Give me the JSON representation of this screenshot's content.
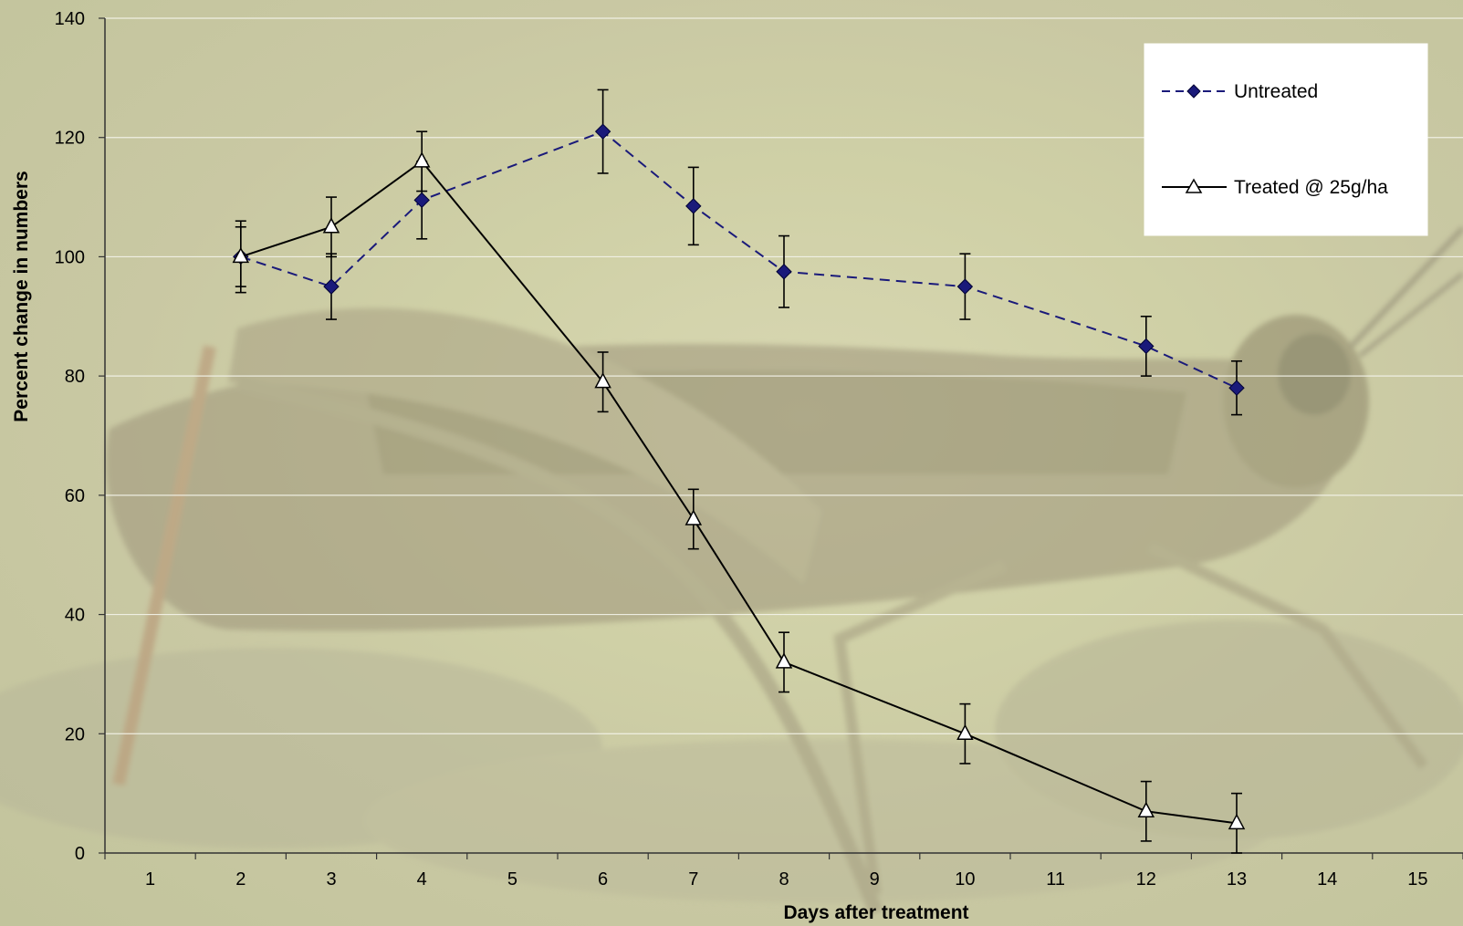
{
  "chart_data": {
    "type": "line",
    "title": "",
    "xlabel": "Days after treatment",
    "ylabel": "Percent change in numbers",
    "xlim": [
      0.5,
      15.5
    ],
    "ylim": [
      0,
      140
    ],
    "x_ticks": [
      "1",
      "2",
      "3",
      "4",
      "5",
      "6",
      "7",
      "8",
      "9",
      "10",
      "11",
      "12",
      "13",
      "14",
      "15"
    ],
    "y_ticks": [
      "0",
      "20",
      "40",
      "60",
      "80",
      "100",
      "120",
      "140"
    ],
    "grid": "horizontal",
    "legend_position": "top-right",
    "background_photo": "grasshopper",
    "series": [
      {
        "name": "Untreated",
        "style": "dashed",
        "marker": "diamond",
        "color": "#1a1a7a",
        "x": [
          2,
          3,
          4,
          6,
          7,
          8,
          10,
          12,
          13
        ],
        "y": [
          100,
          95,
          109.5,
          121,
          108.5,
          97.5,
          95,
          85,
          78
        ],
        "err": [
          6,
          5.5,
          6.5,
          7,
          6.5,
          6,
          5.5,
          5,
          4.5
        ]
      },
      {
        "name": "Treated @ 25g/ha",
        "style": "solid",
        "marker": "triangle",
        "color": "#000000",
        "x": [
          2,
          3,
          4,
          6,
          7,
          8,
          10,
          12,
          13
        ],
        "y": [
          100,
          105,
          116,
          79,
          56,
          32,
          20,
          7,
          5
        ],
        "err": [
          5,
          5,
          5,
          5,
          5,
          5,
          5,
          5,
          5
        ]
      }
    ]
  }
}
